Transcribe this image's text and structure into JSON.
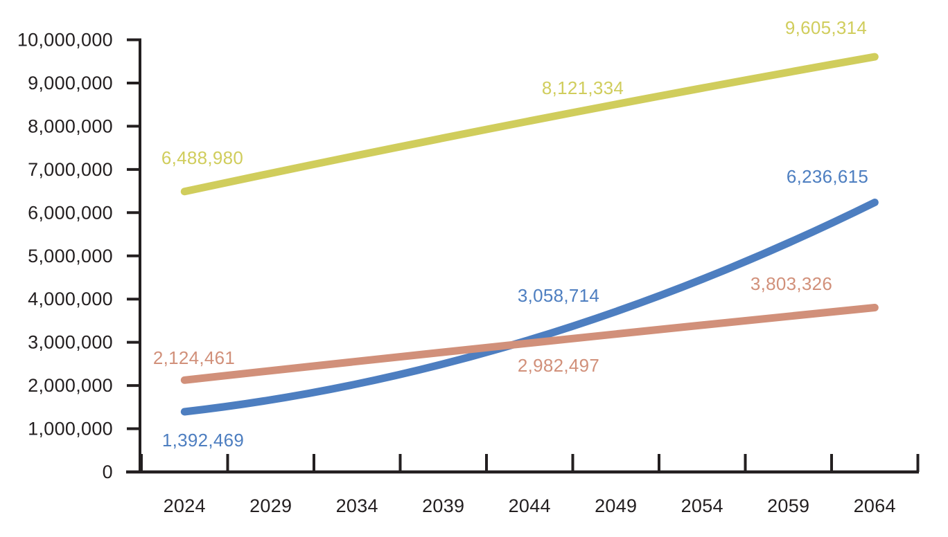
{
  "colors": {
    "background": "#ffffff",
    "axis": "#231f20",
    "olive": "#d0cd5c",
    "blue": "#4d7ec0",
    "salmon": "#d1907a"
  },
  "chart_data": {
    "type": "line",
    "title": "",
    "xlabel": "",
    "ylabel": "",
    "grid": false,
    "legend": "none",
    "x": [
      2024,
      2029,
      2034,
      2039,
      2044,
      2049,
      2054,
      2059,
      2064
    ],
    "x_tick_labels": [
      "2024",
      "2029",
      "2034",
      "2039",
      "2044",
      "2049",
      "2054",
      "2059",
      "2064"
    ],
    "y_axis": {
      "min": 0,
      "max": 10000000,
      "step": 1000000,
      "tick_labels": [
        "0",
        "1,000,000",
        "2,000,000",
        "3,000,000",
        "4,000,000",
        "5,000,000",
        "6,000,000",
        "7,000,000",
        "8,000,000",
        "9,000,000",
        "10,000,000"
      ]
    },
    "series": [
      {
        "name": "olive-series",
        "color": "#d0cd5c",
        "labeled_points": [
          {
            "year": 2024,
            "value": 6488980,
            "label": "6,488,980"
          },
          {
            "year": 2044,
            "value": 8121334,
            "label": "8,121,334"
          },
          {
            "year": 2064,
            "value": 9605314,
            "label": "9,605,314"
          }
        ]
      },
      {
        "name": "blue-series",
        "color": "#4d7ec0",
        "labeled_points": [
          {
            "year": 2024,
            "value": 1392469,
            "label": "1,392,469"
          },
          {
            "year": 2044,
            "value": 3058714,
            "label": "3,058,714"
          },
          {
            "year": 2064,
            "value": 6236615,
            "label": "6,236,615"
          }
        ]
      },
      {
        "name": "salmon-series",
        "color": "#d1907a",
        "labeled_points": [
          {
            "year": 2024,
            "value": 2124461,
            "label": "2,124,461"
          },
          {
            "year": 2044,
            "value": 2982497,
            "label": "2,982,497"
          },
          {
            "year": 2064,
            "value": 3803326,
            "label": "3,803,326"
          }
        ]
      }
    ]
  }
}
